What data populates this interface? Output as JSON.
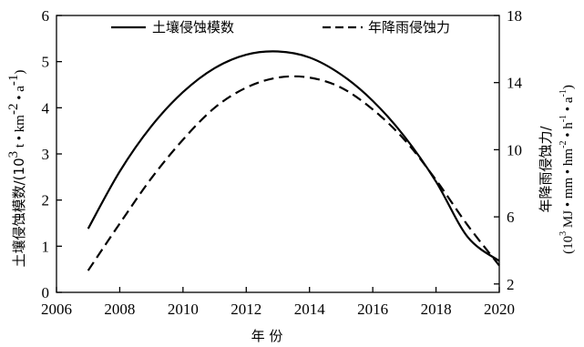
{
  "chart_data": {
    "type": "line",
    "x": [
      2007,
      2008,
      2009,
      2010,
      2011,
      2012,
      2013,
      2014,
      2015,
      2016,
      2017,
      2018,
      2019,
      2020
    ],
    "xlabel": "年 份",
    "xlim": [
      2006,
      2020
    ],
    "x_ticks": [
      "2006",
      "2008",
      "2010",
      "2012",
      "2014",
      "2016",
      "2018",
      "2020"
    ],
    "ylabel": "土壤侵蚀模数/(10³ t·km⁻²·a⁻¹)",
    "ylabel_parts": [
      "土壤侵蚀模数/(10",
      "3",
      " t • km",
      "-2",
      " • a",
      "-1",
      ")"
    ],
    "ylim": [
      0,
      6
    ],
    "y_ticks": [
      "0",
      "1",
      "2",
      "3",
      "4",
      "5",
      "6"
    ],
    "y2label": "年降雨侵蚀力/(10³ MJ·mm·hm⁻²·h⁻¹·a⁻¹)",
    "y2label_line1": "年降雨侵蚀力/",
    "y2label_line2_parts": [
      "(10",
      "3",
      " MJ • mm • hm",
      "-2",
      " • h",
      "-1",
      " • a",
      "-1",
      ")"
    ],
    "y2lim": [
      1.5,
      18
    ],
    "y2_ticks": [
      "2",
      "6",
      "10",
      "14",
      "18"
    ],
    "legend_position": "top",
    "grid": false,
    "series": [
      {
        "name": "土壤侵蚀模数",
        "axis": "left",
        "style": "solid",
        "values": [
          1.38,
          2.62,
          3.6,
          4.34,
          4.86,
          5.15,
          5.22,
          5.09,
          4.72,
          4.15,
          3.38,
          2.4,
          1.2,
          0.68
        ]
      },
      {
        "name": "年降雨侵蚀力",
        "axis": "right",
        "style": "dashed",
        "values": [
          2.8,
          5.6,
          8.3,
          10.6,
          12.5,
          13.7,
          14.3,
          14.3,
          13.7,
          12.4,
          10.6,
          8.2,
          5.5,
          3.1
        ]
      }
    ]
  },
  "colors": {
    "line": "#000000",
    "background": "#ffffff"
  }
}
